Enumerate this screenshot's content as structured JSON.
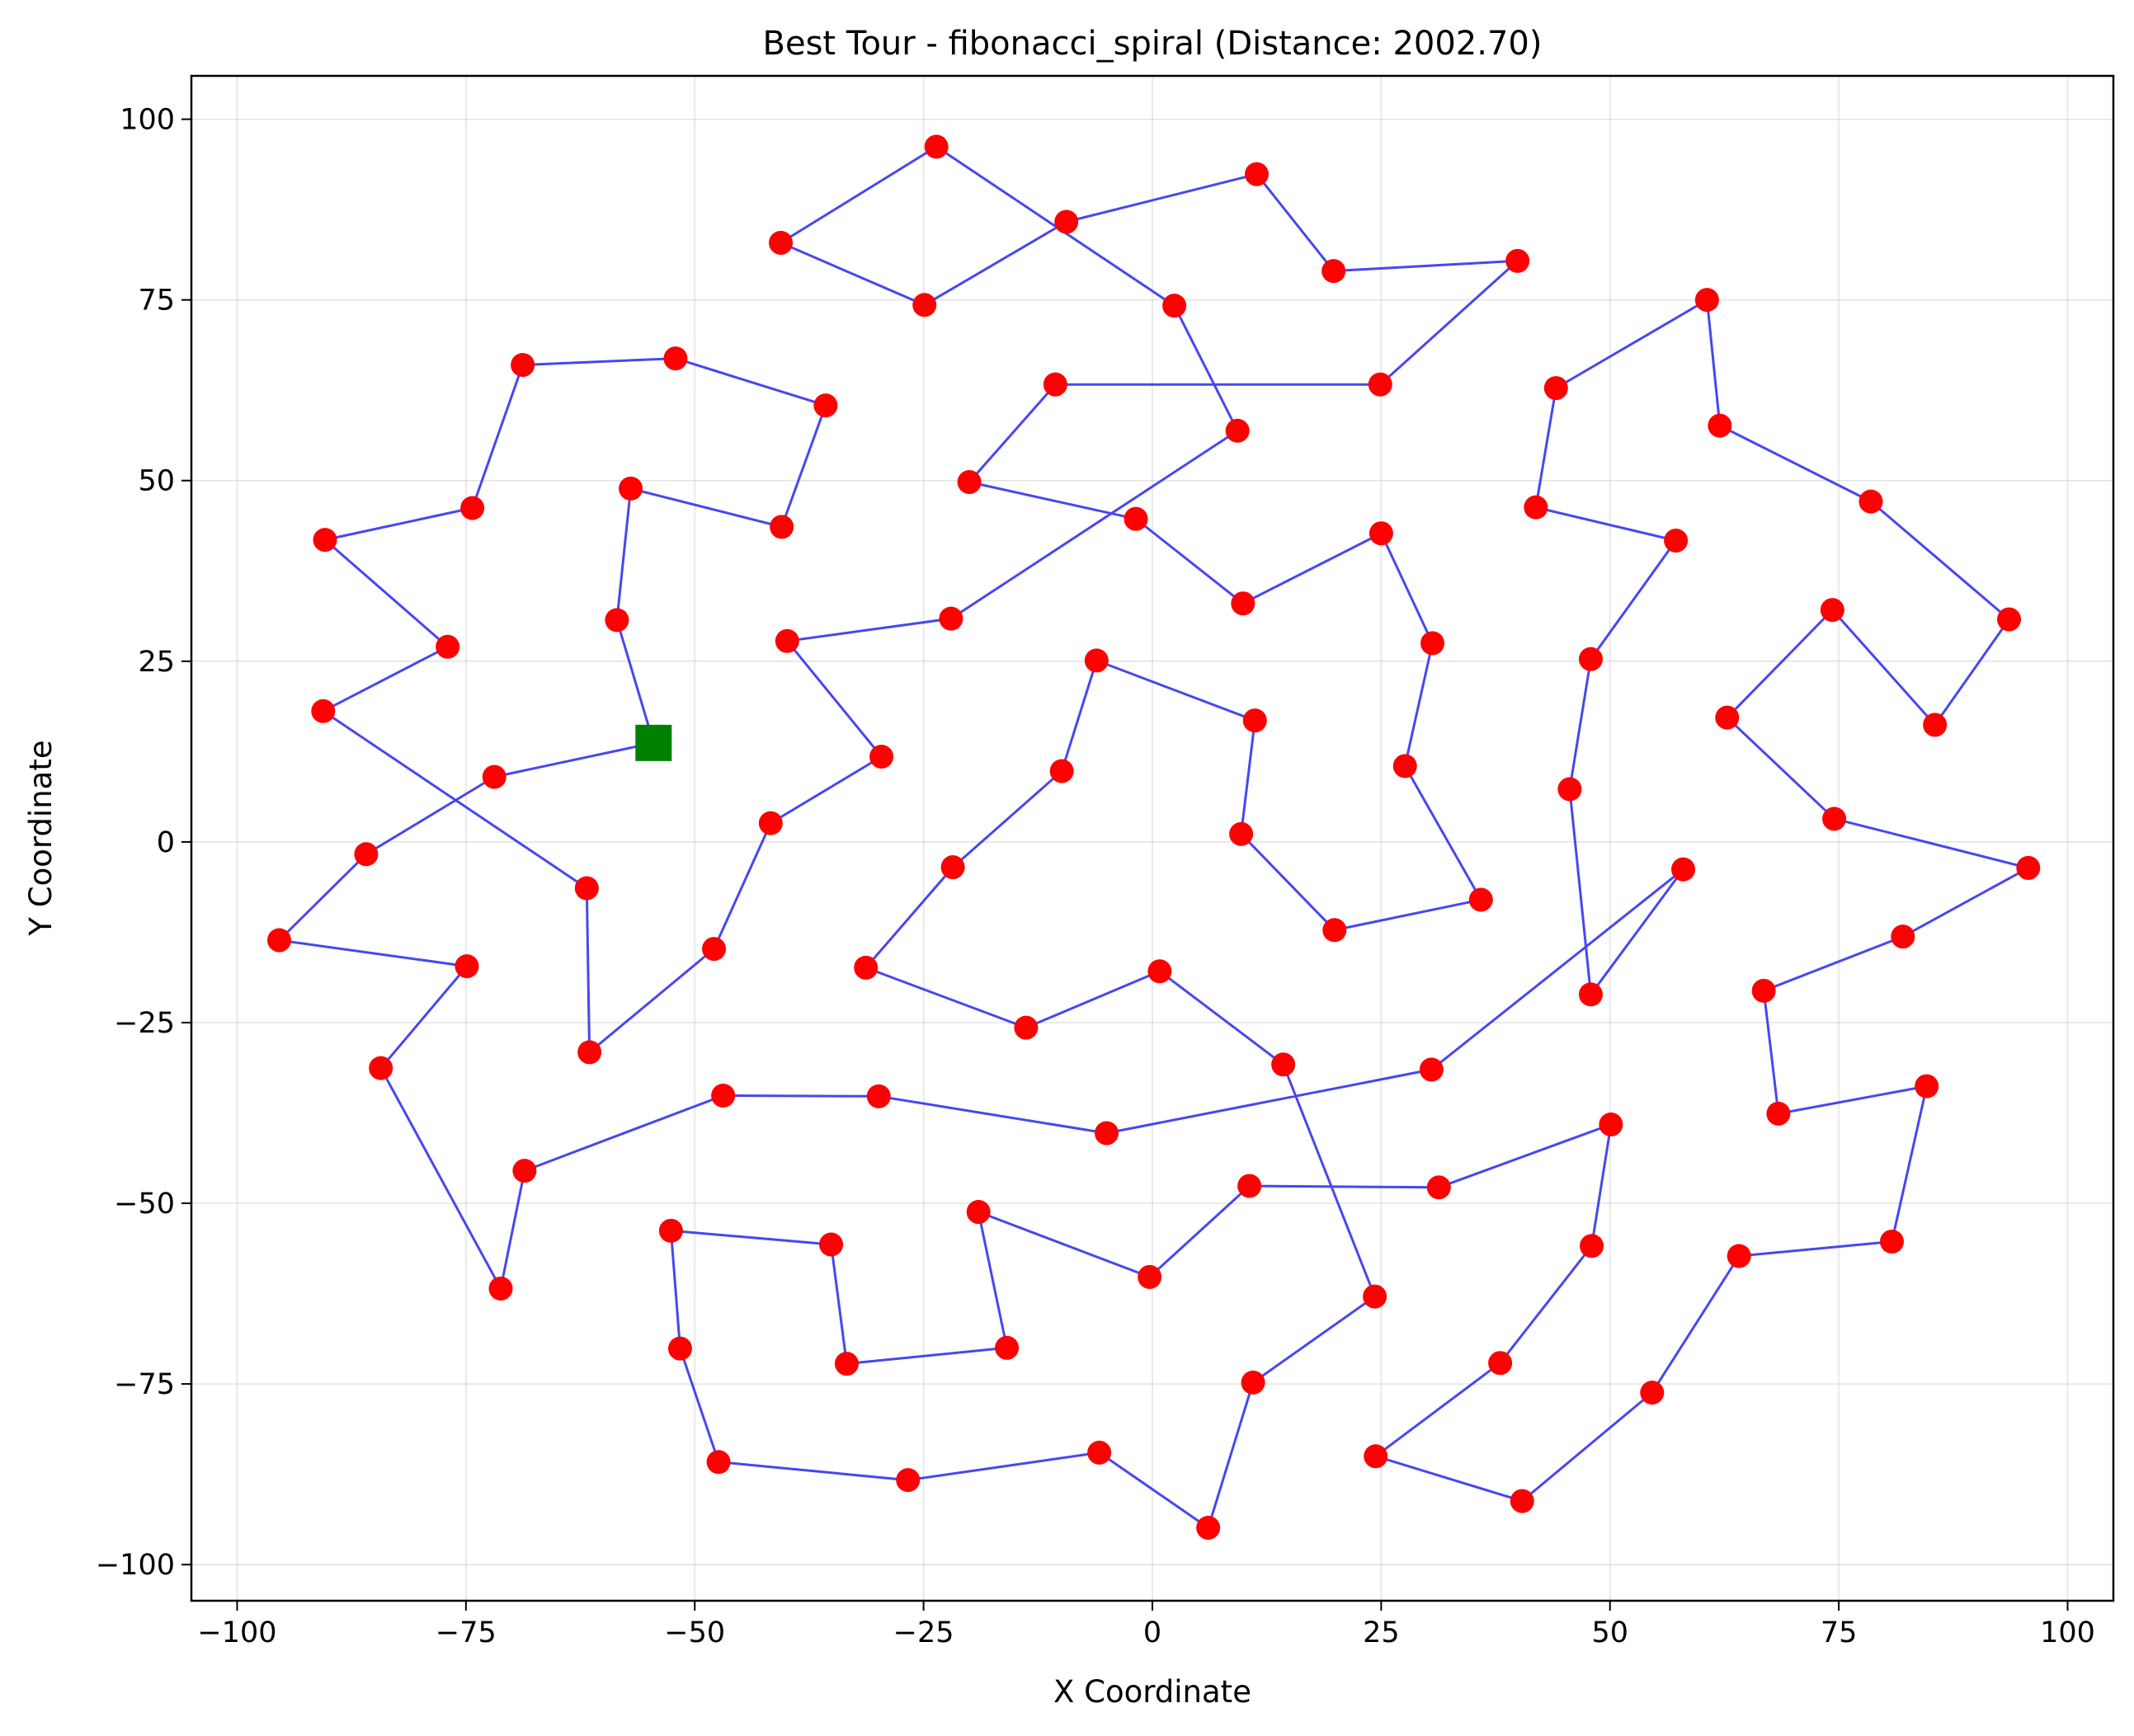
{
  "chart_data": {
    "type": "scatter",
    "title": "Best Tour - fibonacci_spiral (Distance: 2002.70)",
    "xlabel": "X Coordinate",
    "ylabel": "Y Coordinate",
    "xlim": [
      -105,
      105
    ],
    "ylim": [
      -105,
      106
    ],
    "xticks": [
      -100,
      -75,
      -50,
      -25,
      0,
      25,
      50,
      75,
      100
    ],
    "yticks": [
      100,
      75,
      50,
      25,
      0,
      -25,
      -50,
      -75,
      -100
    ],
    "xtick_labels": [
      "−100",
      "−75",
      "−50",
      "−25",
      "0",
      "25",
      "50",
      "75",
      "100"
    ],
    "ytick_labels": [
      "100",
      "75",
      "50",
      "25",
      "0",
      "−25",
      "−50",
      "−75",
      "−100"
    ],
    "grid": true,
    "colors": {
      "route": "#3333ee",
      "city": "#ff0000",
      "start": "#008000"
    },
    "start": {
      "x": -54.5,
      "y": 13.7
    },
    "route": [
      {
        "x": -54.5,
        "y": 13.7
      },
      {
        "x": -58.5,
        "y": 30.7
      },
      {
        "x": -57.0,
        "y": 48.9
      },
      {
        "x": -40.5,
        "y": 43.6
      },
      {
        "x": -35.7,
        "y": 60.4
      },
      {
        "x": -52.1,
        "y": 66.9
      },
      {
        "x": -68.8,
        "y": 66.0
      },
      {
        "x": -74.3,
        "y": 46.2
      },
      {
        "x": -90.4,
        "y": 41.8
      },
      {
        "x": -77.0,
        "y": 27.0
      },
      {
        "x": -90.6,
        "y": 18.1
      },
      {
        "x": -61.8,
        "y": -6.4
      },
      {
        "x": -61.5,
        "y": -29.1
      },
      {
        "x": -47.9,
        "y": -14.8
      },
      {
        "x": -41.7,
        "y": 2.6
      },
      {
        "x": -29.6,
        "y": 11.8
      },
      {
        "x": -39.9,
        "y": 27.8
      },
      {
        "x": -22.0,
        "y": 30.9
      },
      {
        "x": 9.3,
        "y": 56.9
      },
      {
        "x": 2.4,
        "y": 74.2
      },
      {
        "x": -23.6,
        "y": 96.2
      },
      {
        "x": -40.6,
        "y": 82.9
      },
      {
        "x": -24.9,
        "y": 74.3
      },
      {
        "x": -9.4,
        "y": 85.8
      },
      {
        "x": 11.4,
        "y": 92.4
      },
      {
        "x": 19.8,
        "y": 79.0
      },
      {
        "x": 39.9,
        "y": 80.4
      },
      {
        "x": 24.9,
        "y": 63.3
      },
      {
        "x": -10.6,
        "y": 63.3
      },
      {
        "x": -20.0,
        "y": 49.8
      },
      {
        "x": -1.8,
        "y": 44.7
      },
      {
        "x": 9.9,
        "y": 33.0
      },
      {
        "x": 25.0,
        "y": 42.7
      },
      {
        "x": 30.6,
        "y": 27.5
      },
      {
        "x": 27.6,
        "y": 10.5
      },
      {
        "x": 35.9,
        "y": -8.0
      },
      {
        "x": 19.9,
        "y": -12.2
      },
      {
        "x": 9.7,
        "y": 1.1
      },
      {
        "x": 11.2,
        "y": 16.8
      },
      {
        "x": -6.1,
        "y": 25.1
      },
      {
        "x": -9.9,
        "y": 9.8
      },
      {
        "x": -21.8,
        "y": -3.5
      },
      {
        "x": -31.3,
        "y": -17.4
      },
      {
        "x": -13.8,
        "y": -25.7
      },
      {
        "x": 0.8,
        "y": -17.9
      },
      {
        "x": 14.3,
        "y": -30.8
      },
      {
        "x": 24.3,
        "y": -62.9
      },
      {
        "x": 11.0,
        "y": -74.8
      },
      {
        "x": 6.1,
        "y": -94.9
      },
      {
        "x": -5.8,
        "y": -84.5
      },
      {
        "x": -26.7,
        "y": -88.3
      },
      {
        "x": -47.4,
        "y": -85.8
      },
      {
        "x": -51.6,
        "y": -70.1
      },
      {
        "x": -52.6,
        "y": -53.8
      },
      {
        "x": -35.1,
        "y": -55.7
      },
      {
        "x": -33.4,
        "y": -72.2
      },
      {
        "x": -15.9,
        "y": -70.0
      },
      {
        "x": -19.0,
        "y": -51.2
      },
      {
        "x": -0.3,
        "y": -60.2
      },
      {
        "x": 10.6,
        "y": -47.6
      },
      {
        "x": 31.3,
        "y": -47.8
      },
      {
        "x": 50.1,
        "y": -39.1
      },
      {
        "x": 48.0,
        "y": -55.9
      },
      {
        "x": 38.0,
        "y": -72.1
      },
      {
        "x": 24.4,
        "y": -85.0
      },
      {
        "x": 40.4,
        "y": -91.2
      },
      {
        "x": 54.6,
        "y": -76.2
      },
      {
        "x": 64.1,
        "y": -57.3
      },
      {
        "x": 80.8,
        "y": -55.3
      },
      {
        "x": 84.6,
        "y": -33.8
      },
      {
        "x": 68.4,
        "y": -37.6
      },
      {
        "x": 66.8,
        "y": -20.6
      },
      {
        "x": 82.0,
        "y": -13.1
      },
      {
        "x": 95.7,
        "y": -3.6
      },
      {
        "x": 74.5,
        "y": 3.2
      },
      {
        "x": 62.8,
        "y": 17.2
      },
      {
        "x": 74.3,
        "y": 32.1
      },
      {
        "x": 85.5,
        "y": 16.2
      },
      {
        "x": 93.6,
        "y": 30.8
      },
      {
        "x": 78.5,
        "y": 47.1
      },
      {
        "x": 62.0,
        "y": 57.6
      },
      {
        "x": 60.6,
        "y": 75.0
      },
      {
        "x": 44.1,
        "y": 62.8
      },
      {
        "x": 41.9,
        "y": 46.3
      },
      {
        "x": 57.2,
        "y": 41.7
      },
      {
        "x": 47.9,
        "y": 25.3
      },
      {
        "x": 45.6,
        "y": 7.3
      },
      {
        "x": 47.9,
        "y": -21.1
      },
      {
        "x": 58.0,
        "y": -3.8
      },
      {
        "x": 30.5,
        "y": -31.5
      },
      {
        "x": -5.0,
        "y": -40.3
      },
      {
        "x": -29.9,
        "y": -35.2
      },
      {
        "x": -46.9,
        "y": -35.1
      },
      {
        "x": -68.6,
        "y": -45.5
      },
      {
        "x": -71.2,
        "y": -61.8
      },
      {
        "x": -84.3,
        "y": -31.3
      },
      {
        "x": -74.9,
        "y": -17.2
      },
      {
        "x": -95.4,
        "y": -13.6
      },
      {
        "x": -85.9,
        "y": -1.7
      },
      {
        "x": -71.9,
        "y": 9.0
      },
      {
        "x": -54.5,
        "y": 13.7
      }
    ]
  }
}
